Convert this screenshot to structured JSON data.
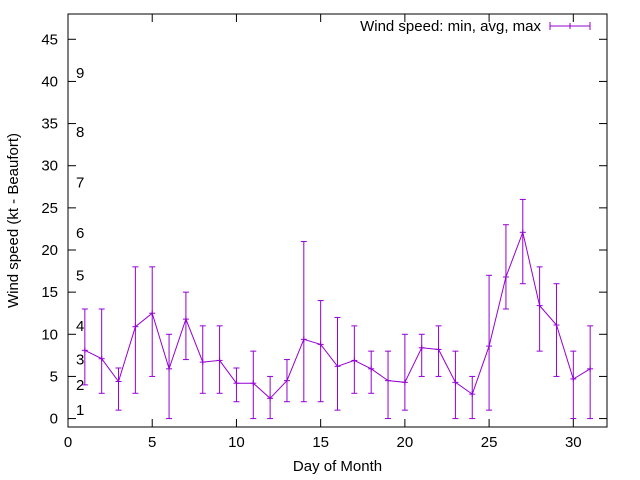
{
  "chart_data": {
    "type": "line",
    "title": "",
    "xlabel": "Day of Month",
    "ylabel": "Wind speed (kt - Beaufort)",
    "xlim": [
      0,
      32
    ],
    "ylim": [
      -1,
      48
    ],
    "xticks": [
      0,
      5,
      10,
      15,
      20,
      25,
      30
    ],
    "yticks": [
      0,
      5,
      10,
      15,
      20,
      25,
      30,
      35,
      40,
      45
    ],
    "grid": false,
    "legend_position": "top-right",
    "series": [
      {
        "name": "Wind speed: min, avg, max",
        "color": "#9400d3",
        "style": "errorbars-lines",
        "x": [
          1,
          2,
          3,
          4,
          5,
          6,
          7,
          8,
          9,
          10,
          11,
          12,
          13,
          14,
          15,
          16,
          17,
          18,
          19,
          20,
          21,
          22,
          23,
          24,
          25,
          26,
          27,
          28,
          29,
          30,
          31
        ],
        "avg": [
          8.1,
          7.1,
          4.4,
          10.9,
          12.5,
          5.9,
          11.8,
          6.7,
          6.9,
          4.2,
          4.2,
          2.4,
          4.5,
          9.4,
          8.8,
          6.2,
          6.9,
          5.9,
          4.5,
          4.3,
          8.4,
          8.2,
          4.3,
          2.9,
          8.6,
          16.8,
          22.1,
          13.4,
          11.1,
          4.7,
          5.9
        ],
        "min": [
          4,
          3,
          1,
          3,
          5,
          0,
          7,
          3,
          3,
          2,
          0,
          0,
          2,
          2,
          2,
          1,
          3,
          3,
          0,
          1,
          5,
          5,
          0,
          0,
          1,
          13,
          16,
          8,
          5,
          0,
          0
        ],
        "max": [
          13,
          13,
          6,
          18,
          18,
          10,
          15,
          11,
          11,
          6,
          8,
          5,
          7,
          21,
          14,
          12,
          11,
          8,
          8,
          10,
          10,
          11,
          8,
          5,
          17,
          23,
          26,
          18,
          16,
          8,
          11
        ]
      }
    ],
    "beaufort_labels": [
      {
        "label": "1",
        "kt": 1
      },
      {
        "label": "2",
        "kt": 4
      },
      {
        "label": "3",
        "kt": 7
      },
      {
        "label": "4",
        "kt": 11
      },
      {
        "label": "5",
        "kt": 17
      },
      {
        "label": "6",
        "kt": 22
      },
      {
        "label": "7",
        "kt": 28
      },
      {
        "label": "8",
        "kt": 34
      },
      {
        "label": "9",
        "kt": 41
      }
    ]
  }
}
